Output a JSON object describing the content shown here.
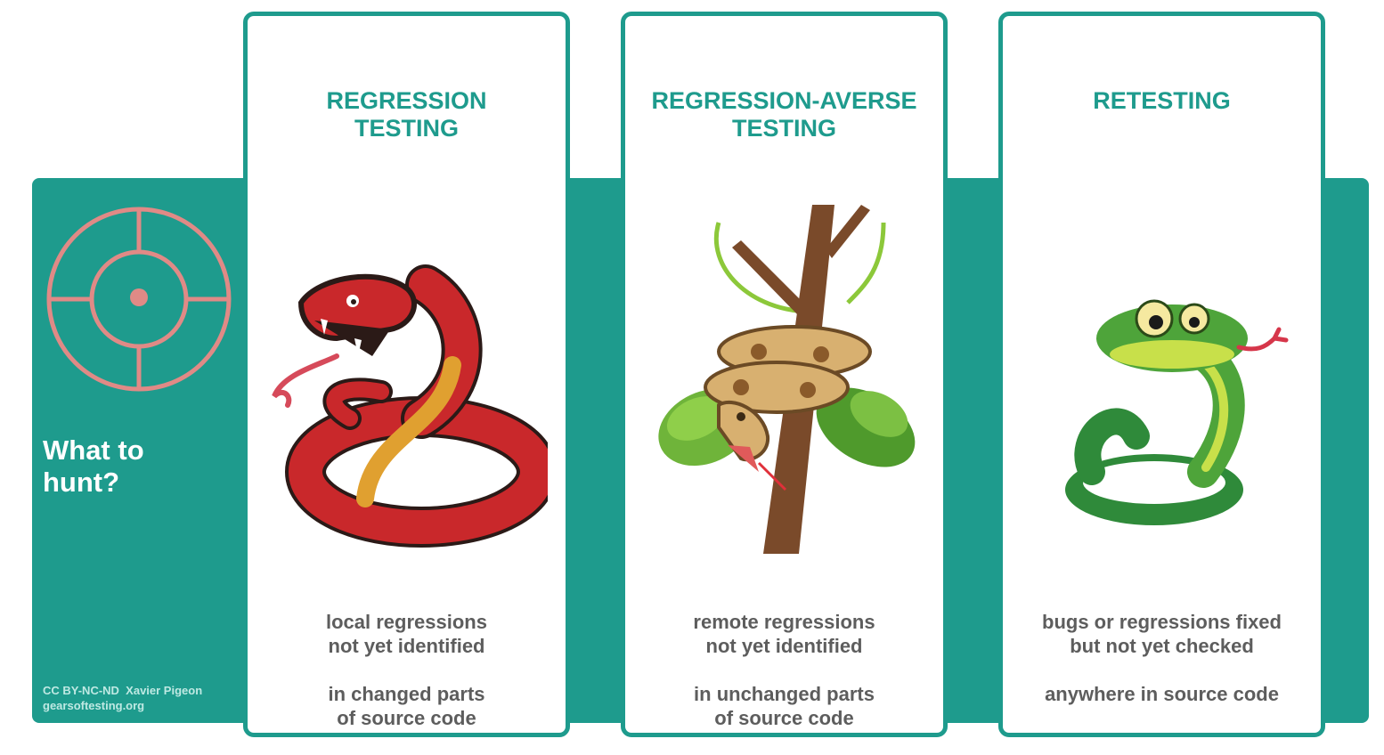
{
  "sidebar": {
    "title": "What to\nhunt?",
    "credit_line1": "CC BY-NC-ND  Xavier Pigeon",
    "credit_line2": "gearsoftesting.org"
  },
  "icons": {
    "target": "crosshair-target-icon",
    "card1": "red-snake-illustration",
    "card2": "python-on-tree-illustration",
    "card3": "green-snake-illustration"
  },
  "colors": {
    "band": "#1e9b8d",
    "title": "#1e9b8d",
    "body_text": "#5d5d5d",
    "target": "#e08a86"
  },
  "cards": [
    {
      "title": "REGRESSION\nTESTING",
      "description": "local regressions\nnot yet identified\n\nin changed parts\nof source code"
    },
    {
      "title": "REGRESSION-AVERSE\nTESTING",
      "description": "remote regressions\nnot yet identified\n\nin unchanged parts\nof source code"
    },
    {
      "title": "RETESTING",
      "description": "bugs or regressions fixed\nbut not yet checked\n\nanywhere in source code"
    }
  ]
}
